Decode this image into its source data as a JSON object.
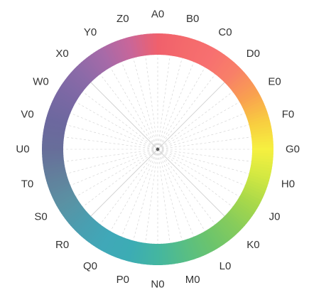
{
  "diagram": {
    "type": "hue-wheel",
    "labels": [
      "A0",
      "B0",
      "C0",
      "D0",
      "E0",
      "F0",
      "G0",
      "H0",
      "J0",
      "K0",
      "L0",
      "M0",
      "N0",
      "P0",
      "Q0",
      "R0",
      "S0",
      "T0",
      "U0",
      "V0",
      "W0",
      "X0",
      "Y0",
      "Z0"
    ],
    "colors": {
      "A0": "#f0606c",
      "B0": "#f46a6c",
      "C0": "#f77070",
      "D0": "#f88068",
      "E0": "#f9a050",
      "F0": "#f8cc40",
      "G0": "#f6f040",
      "H0": "#d2e842",
      "J0": "#a8d84a",
      "K0": "#86cc5c",
      "L0": "#6cc46c",
      "M0": "#58be84",
      "N0": "#44b6a0",
      "P0": "#3cacb4",
      "Q0": "#40a8b8",
      "R0": "#4a9eb0",
      "S0": "#5a92a4",
      "T0": "#62809c",
      "U0": "#676e9a",
      "V0": "#6c689e",
      "W0": "#7a68a4",
      "X0": "#8c6aa8",
      "Y0": "#a66aa8",
      "Z0": "#c8669a"
    },
    "line_color": "#cfcfcf",
    "center_color": "#555555"
  }
}
